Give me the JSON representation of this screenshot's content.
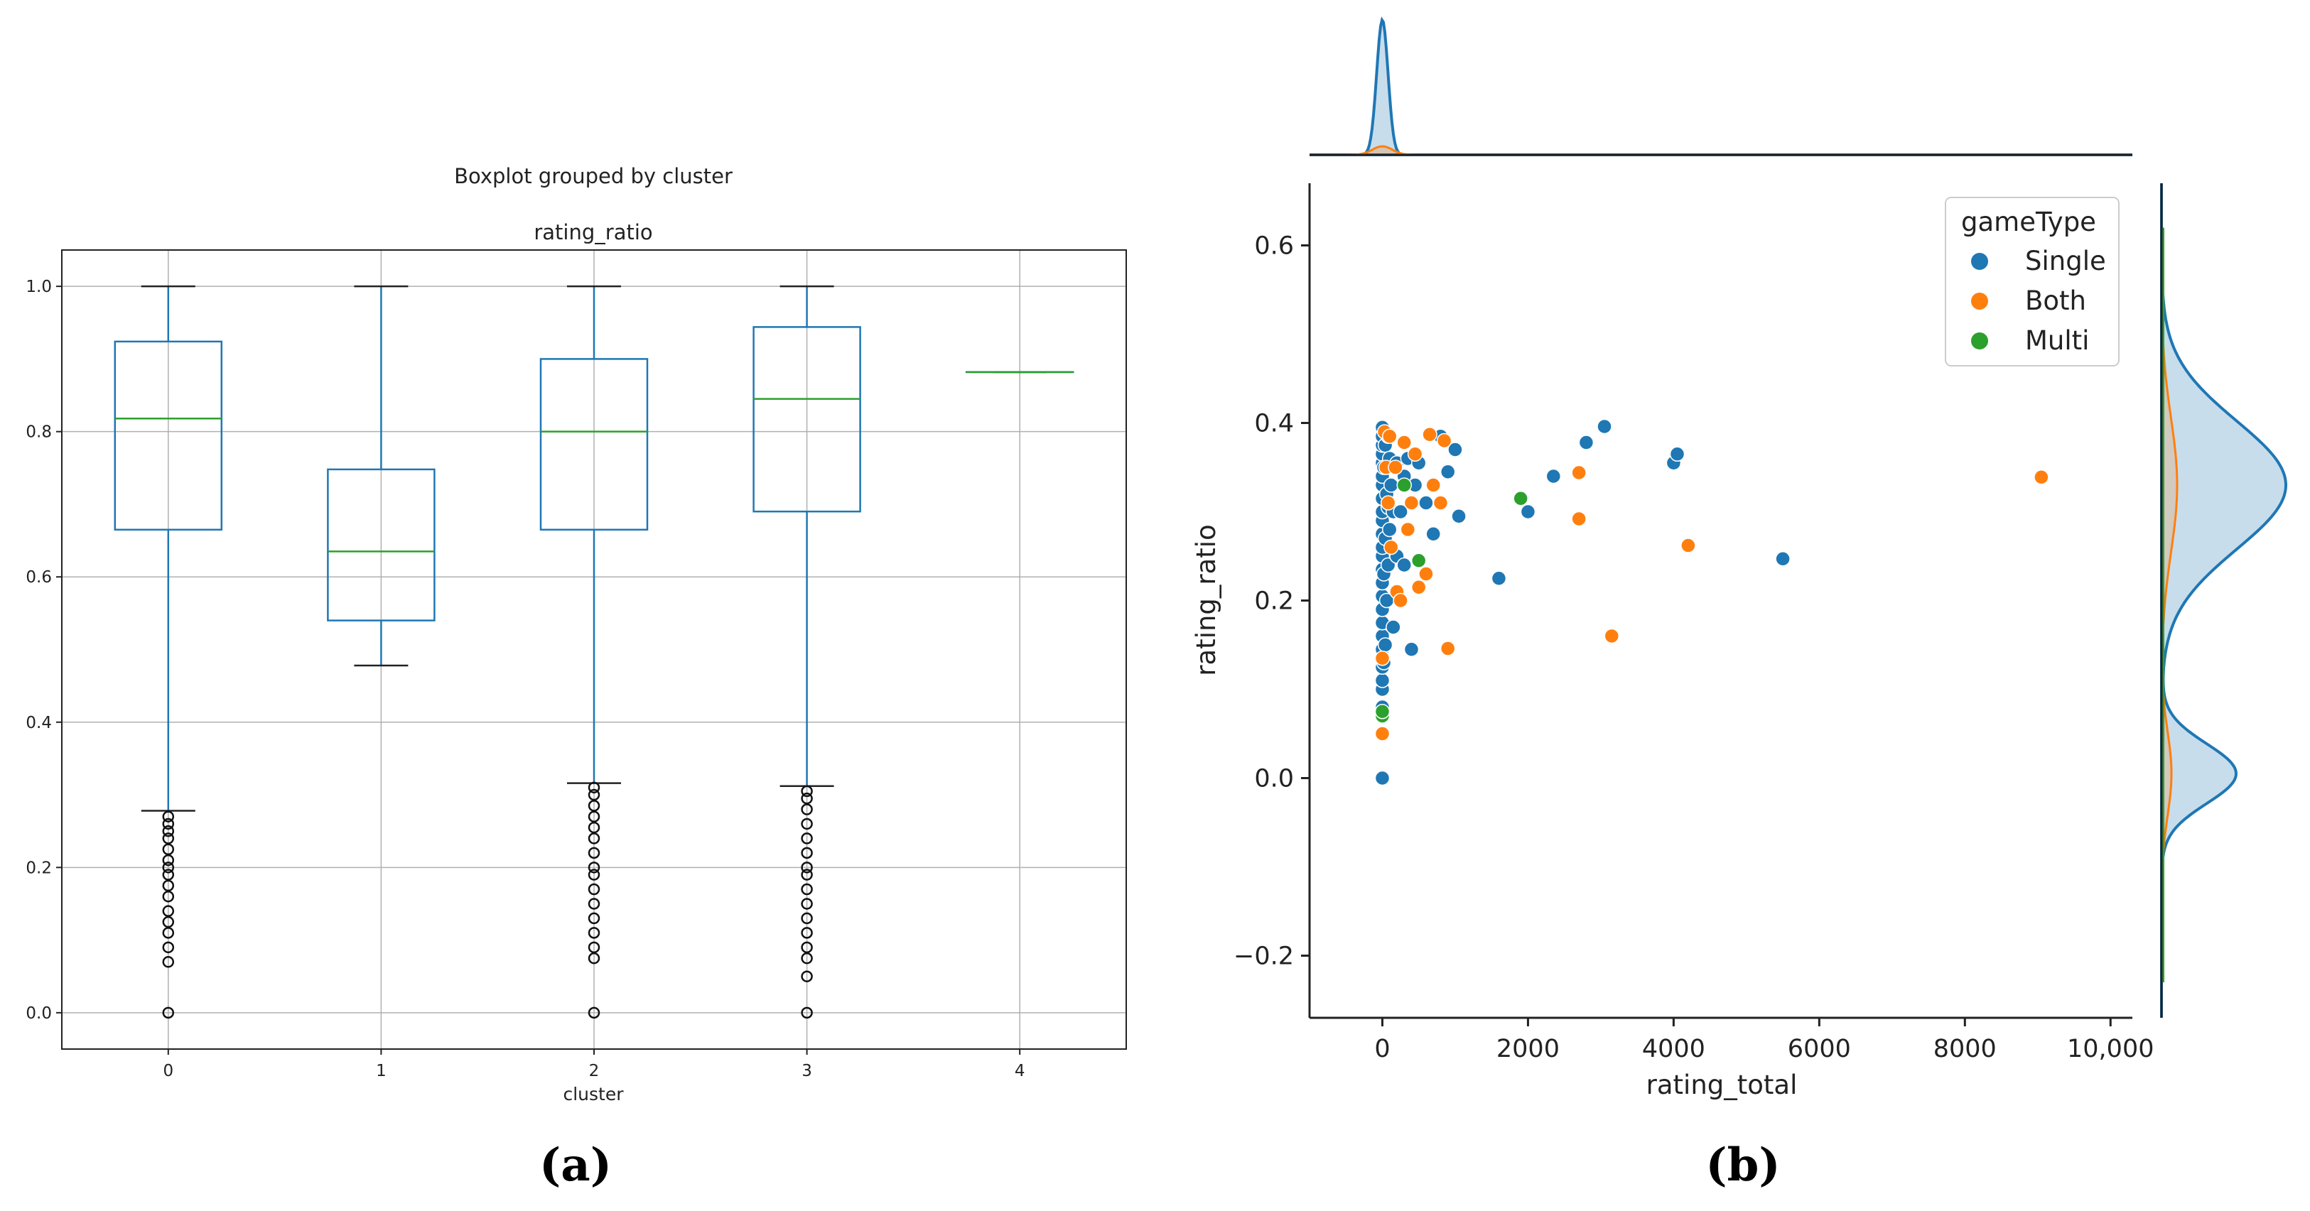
{
  "chart_data": [
    {
      "type": "boxplot",
      "suptitle": "Boxplot grouped by cluster",
      "title": "rating_ratio",
      "xlabel": "cluster",
      "ylabel": "",
      "ylim": [
        -0.05,
        1.05
      ],
      "grid": true,
      "categories": [
        "0",
        "1",
        "2",
        "3",
        "4"
      ],
      "yticks": [
        0.0,
        0.2,
        0.4,
        0.6,
        0.8,
        1.0
      ],
      "ytick_labels": [
        "0.0",
        "0.2",
        "0.4",
        "0.6",
        "0.8",
        "1.0"
      ],
      "box_color": "#1f77b4",
      "median_color": "#2ca02c",
      "boxes": [
        {
          "label": "0",
          "whislo": 0.278,
          "q1": 0.665,
          "med": 0.818,
          "q3": 0.924,
          "whishi": 1.0,
          "fliers": [
            0.0,
            0.07,
            0.09,
            0.11,
            0.125,
            0.14,
            0.16,
            0.175,
            0.19,
            0.2,
            0.21,
            0.225,
            0.24,
            0.25,
            0.26,
            0.27
          ]
        },
        {
          "label": "1",
          "whislo": 0.478,
          "q1": 0.54,
          "med": 0.635,
          "q3": 0.748,
          "whishi": 1.0,
          "fliers": []
        },
        {
          "label": "2",
          "whislo": 0.316,
          "q1": 0.665,
          "med": 0.8,
          "q3": 0.9,
          "whishi": 1.0,
          "fliers": [
            0.0,
            0.075,
            0.09,
            0.11,
            0.13,
            0.15,
            0.17,
            0.19,
            0.2,
            0.22,
            0.24,
            0.255,
            0.27,
            0.285,
            0.3,
            0.31
          ]
        },
        {
          "label": "3",
          "whislo": 0.312,
          "q1": 0.69,
          "med": 0.845,
          "q3": 0.944,
          "whishi": 1.0,
          "fliers": [
            0.0,
            0.05,
            0.075,
            0.09,
            0.11,
            0.13,
            0.15,
            0.17,
            0.19,
            0.2,
            0.22,
            0.24,
            0.26,
            0.28,
            0.295,
            0.305
          ]
        },
        {
          "label": "4",
          "whislo": 0.882,
          "q1": 0.882,
          "med": 0.882,
          "q3": 0.882,
          "whishi": 0.882,
          "fliers": []
        }
      ],
      "caption": "(a)"
    },
    {
      "type": "scatter",
      "xlabel": "rating_total",
      "ylabel": "rating_ratio",
      "xlim": [
        -1000,
        10300
      ],
      "ylim": [
        -0.27,
        0.67
      ],
      "xticks": [
        0,
        2000,
        4000,
        6000,
        8000,
        10000
      ],
      "xtick_labels": [
        "0",
        "2000",
        "4000",
        "6000",
        "8000",
        "10,000"
      ],
      "yticks": [
        -0.2,
        0.0,
        0.2,
        0.4,
        0.6
      ],
      "ytick_labels": [
        "−0.2",
        "0.0",
        "0.2",
        "0.4",
        "0.6"
      ],
      "legend_title": "gameType",
      "legend_position": "top-right",
      "series": [
        {
          "name": "Single",
          "color": "#1f77b4",
          "x": [
            0,
            0,
            0,
            0,
            0,
            0,
            0,
            0,
            0,
            0,
            0,
            0,
            0,
            0,
            0,
            0,
            0,
            0,
            0,
            0,
            0,
            0,
            0,
            0,
            0,
            20,
            20,
            20,
            40,
            40,
            40,
            60,
            60,
            80,
            80,
            80,
            100,
            100,
            120,
            150,
            150,
            200,
            200,
            250,
            300,
            300,
            350,
            400,
            450,
            500,
            600,
            700,
            800,
            900,
            1000,
            1050,
            1600,
            2000,
            2350,
            2800,
            3050,
            4000,
            4050,
            5500
          ],
          "y": [
            0.0,
            0.08,
            0.1,
            0.11,
            0.125,
            0.145,
            0.16,
            0.175,
            0.19,
            0.205,
            0.22,
            0.235,
            0.25,
            0.26,
            0.275,
            0.29,
            0.3,
            0.315,
            0.33,
            0.34,
            0.355,
            0.365,
            0.375,
            0.385,
            0.395,
            0.13,
            0.23,
            0.35,
            0.15,
            0.27,
            0.375,
            0.2,
            0.32,
            0.24,
            0.305,
            0.385,
            0.28,
            0.36,
            0.33,
            0.17,
            0.3,
            0.25,
            0.355,
            0.3,
            0.24,
            0.34,
            0.36,
            0.145,
            0.33,
            0.355,
            0.31,
            0.275,
            0.385,
            0.345,
            0.37,
            0.295,
            0.225,
            0.3,
            0.34,
            0.378,
            0.396,
            0.355,
            0.365,
            0.247
          ]
        },
        {
          "name": "Both",
          "color": "#ff7f0e",
          "x": [
            0,
            0,
            30,
            50,
            80,
            100,
            120,
            180,
            200,
            250,
            300,
            350,
            400,
            450,
            500,
            600,
            650,
            700,
            800,
            850,
            900,
            2700,
            2700,
            3150,
            4200,
            9050
          ],
          "y": [
            0.05,
            0.135,
            0.39,
            0.35,
            0.31,
            0.385,
            0.26,
            0.35,
            0.21,
            0.2,
            0.378,
            0.28,
            0.31,
            0.365,
            0.215,
            0.23,
            0.387,
            0.33,
            0.31,
            0.38,
            0.146,
            0.344,
            0.292,
            0.16,
            0.262,
            0.339
          ]
        },
        {
          "name": "Multi",
          "color": "#2ca02c",
          "x": [
            0,
            0,
            300,
            500,
            1900
          ],
          "y": [
            0.07,
            0.075,
            0.33,
            0.245,
            0.315
          ]
        }
      ],
      "top_marginal": {
        "type": "kde",
        "peak_x": 0
      },
      "right_marginal": {
        "type": "kde",
        "peaks_y": [
          0.33,
          0.005
        ]
      },
      "caption": "(b)"
    }
  ]
}
